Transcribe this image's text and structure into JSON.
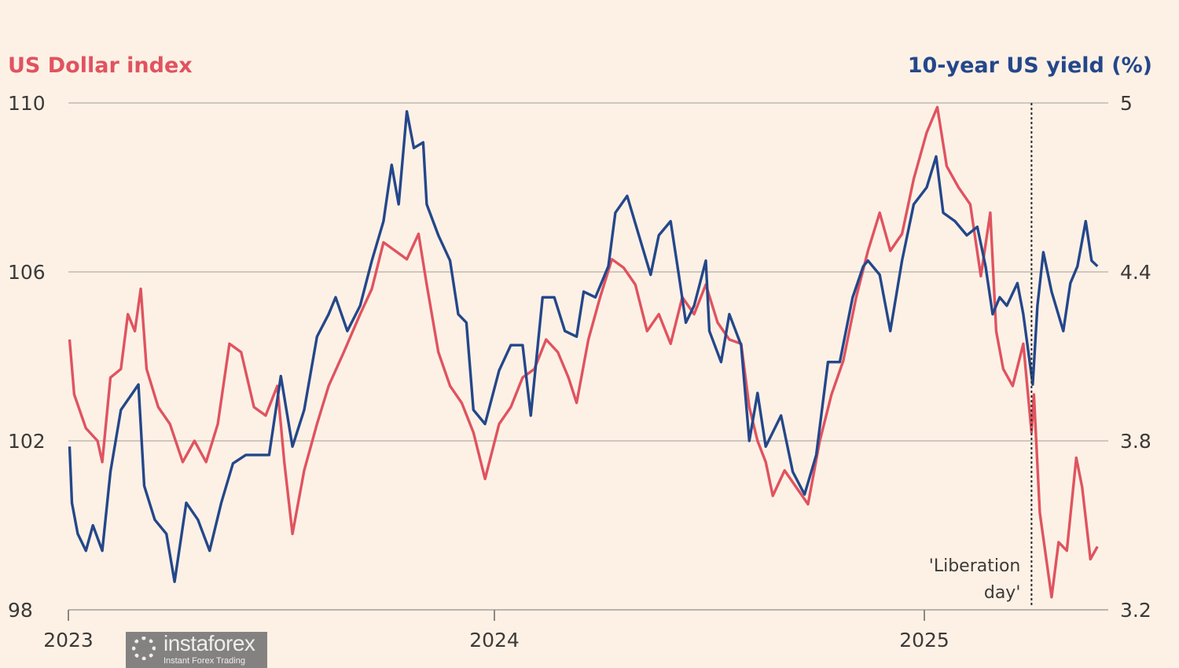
{
  "chart_data": {
    "type": "line",
    "title": "",
    "left_axis": {
      "label": "US Dollar index",
      "ylim": [
        98,
        110
      ],
      "ticks": [
        "98",
        "102",
        "106",
        "110"
      ],
      "color": "#e0535f"
    },
    "right_axis": {
      "label": "10-year US yield (%)",
      "ylim": [
        3.2,
        5
      ],
      "ticks": [
        "3.2",
        "3.8",
        "4.4",
        "5"
      ],
      "color": "#24478a"
    },
    "x_ticks": [
      "2023",
      "2024",
      "2025"
    ],
    "grid": true,
    "annotation": {
      "text_line1": "'Liberation",
      "text_line2": "day'",
      "date": "2025-04-02"
    },
    "series": [
      {
        "name": "US Dollar index",
        "axis": "left",
        "color": "#e0535f",
        "points": [
          [
            "2023-01-02",
            104.4
          ],
          [
            "2023-01-06",
            103.1
          ],
          [
            "2023-01-16",
            102.3
          ],
          [
            "2023-01-26",
            102.0
          ],
          [
            "2023-01-30",
            101.5
          ],
          [
            "2023-02-06",
            103.5
          ],
          [
            "2023-02-15",
            103.7
          ],
          [
            "2023-02-21",
            105.0
          ],
          [
            "2023-02-27",
            104.6
          ],
          [
            "2023-03-04",
            105.6
          ],
          [
            "2023-03-09",
            103.7
          ],
          [
            "2023-03-19",
            102.8
          ],
          [
            "2023-03-29",
            102.4
          ],
          [
            "2023-04-09",
            101.5
          ],
          [
            "2023-04-19",
            102.0
          ],
          [
            "2023-04-29",
            101.5
          ],
          [
            "2023-05-09",
            102.4
          ],
          [
            "2023-05-19",
            104.3
          ],
          [
            "2023-05-29",
            104.1
          ],
          [
            "2023-06-09",
            102.8
          ],
          [
            "2023-06-19",
            102.6
          ],
          [
            "2023-06-29",
            103.3
          ],
          [
            "2023-07-05",
            101.5
          ],
          [
            "2023-07-12",
            99.8
          ],
          [
            "2023-07-22",
            101.3
          ],
          [
            "2023-08-02",
            102.4
          ],
          [
            "2023-08-12",
            103.3
          ],
          [
            "2023-08-25",
            104.1
          ],
          [
            "2023-09-08",
            105.0
          ],
          [
            "2023-09-18",
            105.6
          ],
          [
            "2023-09-28",
            106.7
          ],
          [
            "2023-10-08",
            106.5
          ],
          [
            "2023-10-18",
            106.3
          ],
          [
            "2023-10-28",
            106.9
          ],
          [
            "2023-11-04",
            105.7
          ],
          [
            "2023-11-14",
            104.1
          ],
          [
            "2023-11-24",
            103.3
          ],
          [
            "2023-12-04",
            102.9
          ],
          [
            "2023-12-14",
            102.2
          ],
          [
            "2023-12-24",
            101.1
          ],
          [
            "2024-01-05",
            102.4
          ],
          [
            "2024-01-15",
            102.8
          ],
          [
            "2024-01-25",
            103.5
          ],
          [
            "2024-02-04",
            103.7
          ],
          [
            "2024-02-14",
            104.4
          ],
          [
            "2024-02-24",
            104.1
          ],
          [
            "2024-03-04",
            103.5
          ],
          [
            "2024-03-11",
            102.9
          ],
          [
            "2024-03-21",
            104.4
          ],
          [
            "2024-03-31",
            105.4
          ],
          [
            "2024-04-10",
            106.3
          ],
          [
            "2024-04-20",
            106.1
          ],
          [
            "2024-04-30",
            105.7
          ],
          [
            "2024-05-10",
            104.6
          ],
          [
            "2024-05-20",
            105.0
          ],
          [
            "2024-05-30",
            104.3
          ],
          [
            "2024-06-09",
            105.4
          ],
          [
            "2024-06-19",
            105.0
          ],
          [
            "2024-06-29",
            105.7
          ],
          [
            "2024-07-09",
            104.8
          ],
          [
            "2024-07-19",
            104.4
          ],
          [
            "2024-07-29",
            104.3
          ],
          [
            "2024-08-05",
            102.8
          ],
          [
            "2024-08-12",
            102.0
          ],
          [
            "2024-08-19",
            101.5
          ],
          [
            "2024-08-25",
            100.7
          ],
          [
            "2024-09-04",
            101.3
          ],
          [
            "2024-09-14",
            100.9
          ],
          [
            "2024-09-24",
            100.5
          ],
          [
            "2024-10-04",
            102.0
          ],
          [
            "2024-10-14",
            103.1
          ],
          [
            "2024-10-24",
            103.9
          ],
          [
            "2024-11-04",
            105.4
          ],
          [
            "2024-11-14",
            106.5
          ],
          [
            "2024-11-24",
            107.4
          ],
          [
            "2024-12-03",
            106.5
          ],
          [
            "2024-12-13",
            106.9
          ],
          [
            "2024-12-23",
            108.2
          ],
          [
            "2025-01-03",
            109.3
          ],
          [
            "2025-01-12",
            109.9
          ],
          [
            "2025-01-20",
            108.5
          ],
          [
            "2025-01-30",
            108.0
          ],
          [
            "2025-02-09",
            107.6
          ],
          [
            "2025-02-18",
            105.9
          ],
          [
            "2025-02-26",
            107.4
          ],
          [
            "2025-03-03",
            104.6
          ],
          [
            "2025-03-09",
            103.7
          ],
          [
            "2025-03-17",
            103.3
          ],
          [
            "2025-03-26",
            104.3
          ],
          [
            "2025-04-02",
            102.2
          ],
          [
            "2025-04-04",
            103.1
          ],
          [
            "2025-04-09",
            100.3
          ],
          [
            "2025-04-19",
            98.3
          ],
          [
            "2025-04-25",
            99.6
          ],
          [
            "2025-05-02",
            99.4
          ],
          [
            "2025-05-10",
            101.6
          ],
          [
            "2025-05-15",
            100.9
          ],
          [
            "2025-05-22",
            99.2
          ],
          [
            "2025-05-28",
            99.5
          ]
        ]
      },
      {
        "name": "10-year US yield (%)",
        "axis": "right",
        "color": "#24478a",
        "points": [
          [
            "2023-01-02",
            3.78
          ],
          [
            "2023-01-04",
            3.58
          ],
          [
            "2023-01-09",
            3.47
          ],
          [
            "2023-01-16",
            3.41
          ],
          [
            "2023-01-22",
            3.5
          ],
          [
            "2023-01-30",
            3.41
          ],
          [
            "2023-02-06",
            3.69
          ],
          [
            "2023-02-15",
            3.91
          ],
          [
            "2023-02-25",
            3.97
          ],
          [
            "2023-03-02",
            4.0
          ],
          [
            "2023-03-07",
            3.64
          ],
          [
            "2023-03-16",
            3.52
          ],
          [
            "2023-03-26",
            3.47
          ],
          [
            "2023-04-02",
            3.3
          ],
          [
            "2023-04-12",
            3.58
          ],
          [
            "2023-04-22",
            3.52
          ],
          [
            "2023-05-02",
            3.41
          ],
          [
            "2023-05-12",
            3.58
          ],
          [
            "2023-05-22",
            3.72
          ],
          [
            "2023-06-02",
            3.75
          ],
          [
            "2023-06-12",
            3.75
          ],
          [
            "2023-06-22",
            3.75
          ],
          [
            "2023-07-02",
            4.03
          ],
          [
            "2023-07-12",
            3.78
          ],
          [
            "2023-07-22",
            3.91
          ],
          [
            "2023-08-02",
            4.17
          ],
          [
            "2023-08-12",
            4.25
          ],
          [
            "2023-08-18",
            4.31
          ],
          [
            "2023-08-28",
            4.19
          ],
          [
            "2023-09-08",
            4.28
          ],
          [
            "2023-09-18",
            4.44
          ],
          [
            "2023-09-28",
            4.58
          ],
          [
            "2023-10-05",
            4.78
          ],
          [
            "2023-10-11",
            4.64
          ],
          [
            "2023-10-18",
            4.97
          ],
          [
            "2023-10-24",
            4.84
          ],
          [
            "2023-11-01",
            4.86
          ],
          [
            "2023-11-04",
            4.64
          ],
          [
            "2023-11-14",
            4.53
          ],
          [
            "2023-11-24",
            4.44
          ],
          [
            "2023-12-01",
            4.25
          ],
          [
            "2023-12-08",
            4.22
          ],
          [
            "2023-12-14",
            3.91
          ],
          [
            "2023-12-24",
            3.86
          ],
          [
            "2024-01-05",
            4.05
          ],
          [
            "2024-01-15",
            4.14
          ],
          [
            "2024-01-25",
            4.14
          ],
          [
            "2024-02-01",
            3.89
          ],
          [
            "2024-02-11",
            4.31
          ],
          [
            "2024-02-21",
            4.31
          ],
          [
            "2024-03-01",
            4.19
          ],
          [
            "2024-03-11",
            4.17
          ],
          [
            "2024-03-17",
            4.33
          ],
          [
            "2024-03-27",
            4.31
          ],
          [
            "2024-04-07",
            4.42
          ],
          [
            "2024-04-13",
            4.61
          ],
          [
            "2024-04-23",
            4.67
          ],
          [
            "2024-05-03",
            4.53
          ],
          [
            "2024-05-13",
            4.39
          ],
          [
            "2024-05-20",
            4.53
          ],
          [
            "2024-05-30",
            4.58
          ],
          [
            "2024-06-06",
            4.39
          ],
          [
            "2024-06-12",
            4.22
          ],
          [
            "2024-06-19",
            4.28
          ],
          [
            "2024-06-29",
            4.44
          ],
          [
            "2024-07-02",
            4.19
          ],
          [
            "2024-07-12",
            4.08
          ],
          [
            "2024-07-19",
            4.25
          ],
          [
            "2024-07-29",
            4.14
          ],
          [
            "2024-08-05",
            3.8
          ],
          [
            "2024-08-12",
            3.97
          ],
          [
            "2024-08-19",
            3.78
          ],
          [
            "2024-09-01",
            3.89
          ],
          [
            "2024-09-11",
            3.69
          ],
          [
            "2024-09-21",
            3.61
          ],
          [
            "2024-10-01",
            3.75
          ],
          [
            "2024-10-11",
            4.08
          ],
          [
            "2024-10-21",
            4.08
          ],
          [
            "2024-11-01",
            4.31
          ],
          [
            "2024-11-10",
            4.42
          ],
          [
            "2024-11-14",
            4.44
          ],
          [
            "2024-11-24",
            4.39
          ],
          [
            "2024-12-03",
            4.19
          ],
          [
            "2024-12-13",
            4.44
          ],
          [
            "2024-12-23",
            4.64
          ],
          [
            "2025-01-03",
            4.7
          ],
          [
            "2025-01-11",
            4.81
          ],
          [
            "2025-01-17",
            4.61
          ],
          [
            "2025-01-27",
            4.58
          ],
          [
            "2025-02-06",
            4.53
          ],
          [
            "2025-02-15",
            4.56
          ],
          [
            "2025-02-22",
            4.42
          ],
          [
            "2025-02-28",
            4.25
          ],
          [
            "2025-03-06",
            4.31
          ],
          [
            "2025-03-12",
            4.28
          ],
          [
            "2025-03-21",
            4.36
          ],
          [
            "2025-03-26",
            4.25
          ],
          [
            "2025-04-03",
            4.0
          ],
          [
            "2025-04-07",
            4.28
          ],
          [
            "2025-04-12",
            4.47
          ],
          [
            "2025-04-19",
            4.33
          ],
          [
            "2025-04-29",
            4.19
          ],
          [
            "2025-05-05",
            4.36
          ],
          [
            "2025-05-11",
            4.42
          ],
          [
            "2025-05-18",
            4.58
          ],
          [
            "2025-05-23",
            4.44
          ],
          [
            "2025-05-28",
            4.42
          ]
        ]
      }
    ]
  },
  "watermark": {
    "text": "instaforex",
    "sub": "Instant Forex Trading"
  }
}
